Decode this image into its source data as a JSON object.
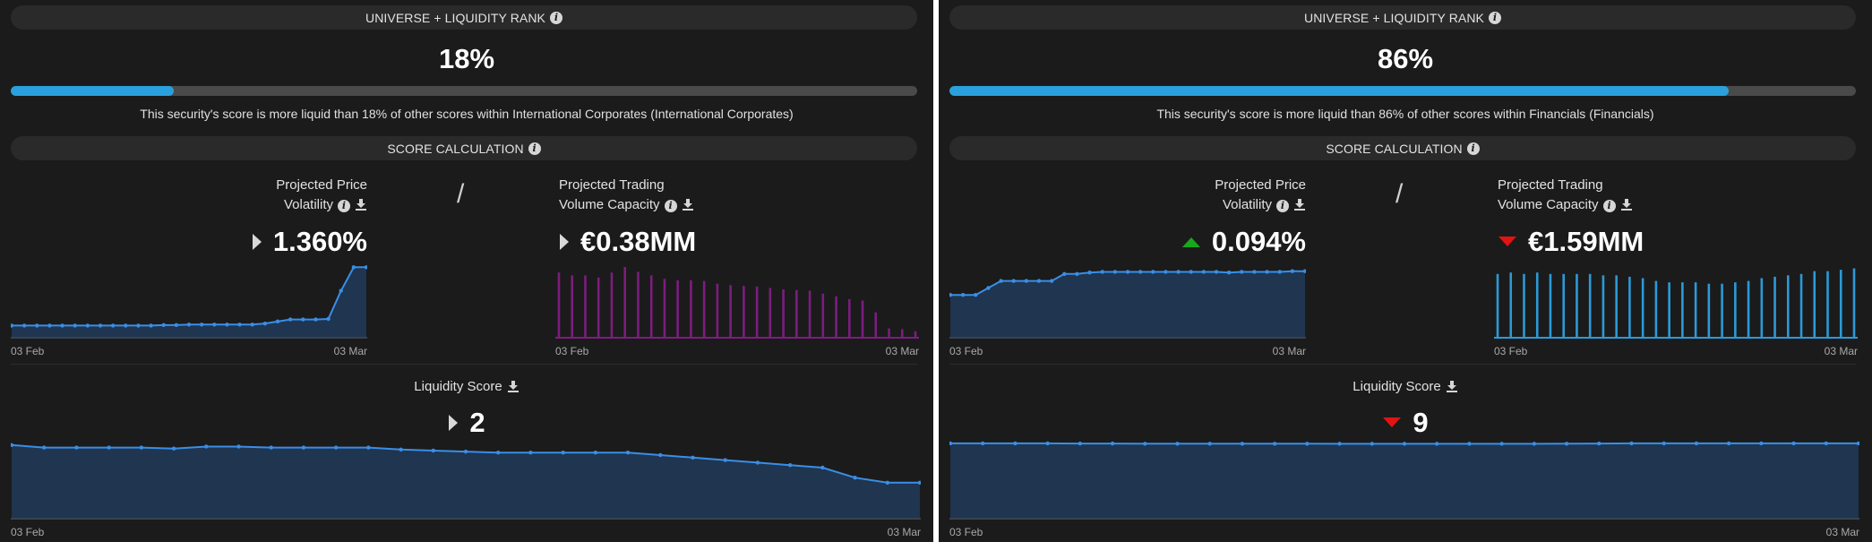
{
  "panels": [
    {
      "rank_header": "UNIVERSE + LIQUIDITY RANK",
      "rank_value": "18%",
      "rank_fraction": 0.18,
      "rank_description": "This security's score is more liquid than 18% of other scores within International Corporates (International Corporates)",
      "calc_header": "SCORE CALCULATION",
      "left_metric": {
        "label_line1": "Projected Price",
        "label_line2": "Volatility",
        "value": "1.360%",
        "trend": "neutral",
        "x_start": "03 Feb",
        "x_end": "03 Mar",
        "series": [
          0.22,
          0.22,
          0.22,
          0.22,
          0.22,
          0.22,
          0.22,
          0.22,
          0.22,
          0.22,
          0.22,
          0.22,
          0.23,
          0.23,
          0.24,
          0.24,
          0.24,
          0.24,
          0.24,
          0.24,
          0.26,
          0.3,
          0.34,
          0.34,
          0.34,
          0.35,
          0.9,
          1.36,
          1.36
        ]
      },
      "separator": "/",
      "right_metric": {
        "label_line1": "Projected Trading",
        "label_line2": "Volume Capacity",
        "value": "€0.38MM",
        "trend": "neutral",
        "x_start": "03 Feb",
        "x_end": "03 Mar",
        "series": [
          0.92,
          0.88,
          0.88,
          0.85,
          0.92,
          1.0,
          0.93,
          0.88,
          0.83,
          0.81,
          0.81,
          0.8,
          0.76,
          0.74,
          0.73,
          0.72,
          0.7,
          0.68,
          0.67,
          0.66,
          0.62,
          0.58,
          0.54,
          0.52,
          0.35,
          0.12,
          0.11,
          0.08
        ]
      },
      "liquidity_label": "Liquidity Score",
      "liquidity_value": "2",
      "liquidity_trend": "neutral",
      "liquidity_chart": {
        "x_start": "03 Feb",
        "x_end": "03 Mar",
        "series": [
          2.75,
          2.7,
          2.7,
          2.7,
          2.7,
          2.68,
          2.72,
          2.72,
          2.7,
          2.7,
          2.7,
          2.7,
          2.66,
          2.64,
          2.62,
          2.6,
          2.6,
          2.6,
          2.6,
          2.6,
          2.55,
          2.5,
          2.45,
          2.4,
          2.35,
          2.3,
          2.1,
          2.0,
          2.0
        ]
      }
    },
    {
      "rank_header": "UNIVERSE + LIQUIDITY RANK",
      "rank_value": "86%",
      "rank_fraction": 0.86,
      "rank_description": "This security's score is more liquid than 86% of other scores within Financials (Financials)",
      "calc_header": "SCORE CALCULATION",
      "left_metric": {
        "label_line1": "Projected Price",
        "label_line2": "Volatility",
        "value": "0.094%",
        "trend": "up",
        "x_start": "03 Feb",
        "x_end": "03 Mar",
        "series": [
          0.06,
          0.06,
          0.06,
          0.07,
          0.08,
          0.08,
          0.08,
          0.08,
          0.08,
          0.09,
          0.09,
          0.092,
          0.093,
          0.093,
          0.093,
          0.093,
          0.093,
          0.093,
          0.093,
          0.093,
          0.093,
          0.093,
          0.092,
          0.093,
          0.093,
          0.093,
          0.093,
          0.094,
          0.094
        ]
      },
      "separator": "/",
      "right_metric": {
        "label_line1": "Projected Trading",
        "label_line2": "Volume Capacity",
        "value": "€1.59MM",
        "trend": "down",
        "x_start": "03 Feb",
        "x_end": "03 Mar",
        "series": [
          0.9,
          0.92,
          0.9,
          0.92,
          0.9,
          0.9,
          0.9,
          0.9,
          0.88,
          0.88,
          0.86,
          0.84,
          0.8,
          0.78,
          0.78,
          0.78,
          0.76,
          0.76,
          0.78,
          0.8,
          0.84,
          0.86,
          0.88,
          0.9,
          0.94,
          0.94,
          0.96,
          0.98
        ]
      },
      "liquidity_label": "Liquidity Score",
      "liquidity_value": "9",
      "liquidity_trend": "down",
      "liquidity_chart": {
        "x_start": "03 Feb",
        "x_end": "03 Mar",
        "series": [
          9.1,
          9.1,
          9.1,
          9.1,
          9.08,
          9.08,
          9.06,
          9.06,
          9.06,
          9.06,
          9.06,
          9.06,
          9.05,
          9.05,
          9.05,
          9.05,
          9.05,
          9.05,
          9.05,
          9.06,
          9.08,
          9.1,
          9.1,
          9.1,
          9.1,
          9.1,
          9.1,
          9.1,
          9.1
        ]
      }
    }
  ],
  "colors": {
    "background": "#1b1b1b",
    "pill": "#2a2a2a",
    "progress_fill": "#2aa1dc",
    "progress_track": "#4a4a4a",
    "area_fill": "#1f3550",
    "line": "#3a8ee6",
    "volume_bar_panel1": "#7c1d7f",
    "volume_bar_panel2": "#2b9ad8",
    "trend_up": "#17a81a",
    "trend_down": "#e21313",
    "trend_neutral": "#d8d8d8"
  },
  "icons": {
    "info": "info-circle-icon",
    "download": "download-icon",
    "trend": "triangle-icon"
  }
}
